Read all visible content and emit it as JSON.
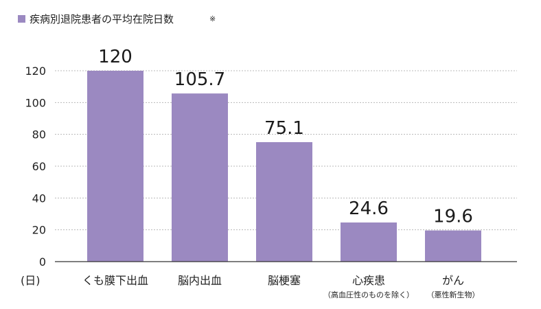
{
  "legend": {
    "label": "疾病別退院患者の平均在院日数",
    "note_mark": "※",
    "color": "#9b89c1"
  },
  "chart_data": {
    "type": "bar",
    "categories": [
      "くも膜下出血",
      "脳内出血",
      "脳梗塞",
      "心疾患",
      "がん"
    ],
    "category_sublabels": [
      "",
      "",
      "",
      "（高血圧性のものを除く）",
      "（悪性新生物）"
    ],
    "values": [
      120,
      105.7,
      75.1,
      24.6,
      19.6
    ],
    "data_labels": [
      "120",
      "105.7",
      "75.1",
      "24.6",
      "19.6"
    ],
    "series": [
      {
        "name": "疾病別退院患者の平均在院日数",
        "values": [
          120,
          105.7,
          75.1,
          24.6,
          19.6
        ]
      }
    ],
    "ylim": [
      0,
      120
    ],
    "yticks": [
      0,
      20,
      40,
      60,
      80,
      100,
      120
    ],
    "yunit": "(日)",
    "grid": true,
    "legend_position": "top-left",
    "bar_color": "#9b89c1"
  }
}
